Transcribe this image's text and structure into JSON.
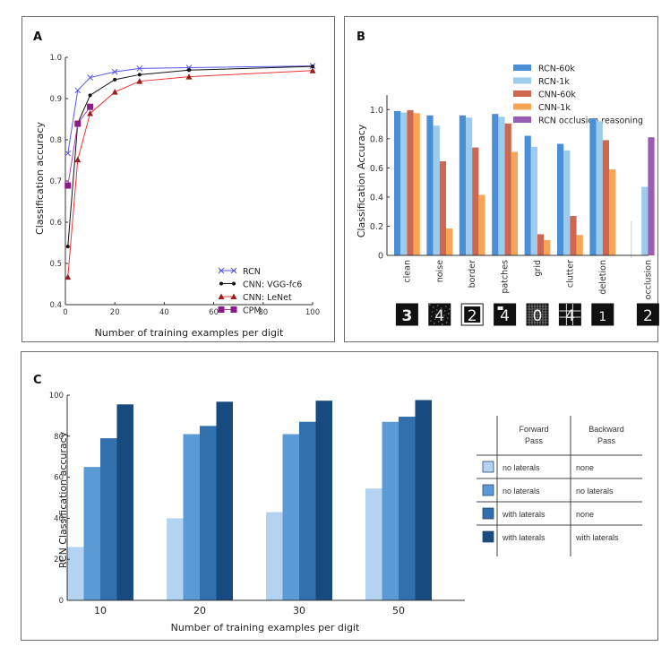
{
  "panels": {
    "A": {
      "label": "A"
    },
    "B": {
      "label": "B"
    },
    "C": {
      "label": "C"
    }
  },
  "chart_data": [
    {
      "id": "A",
      "type": "line",
      "title": "",
      "xlabel": "Number of training examples per digit",
      "ylabel": "Classification accuracy",
      "xlim": [
        0,
        100
      ],
      "ylim": [
        0.4,
        1.0
      ],
      "xticks": [
        "0",
        "20",
        "40",
        "60",
        "80",
        "100"
      ],
      "xtick_values": [
        0,
        20,
        40,
        60,
        80,
        100
      ],
      "yticks": [
        "0.4",
        "0.5",
        "0.6",
        "0.7",
        "0.8",
        "0.9",
        "1.0"
      ],
      "ytick_values": [
        0.4,
        0.5,
        0.6,
        0.7,
        0.8,
        0.9,
        1.0
      ],
      "grid": false,
      "legend_position": "bottom-right",
      "series": [
        {
          "name": "RCN",
          "color": "#5555ee",
          "marker": "x",
          "x": [
            1,
            5,
            10,
            20,
            30,
            50,
            100
          ],
          "y": [
            0.767,
            0.92,
            0.951,
            0.965,
            0.973,
            0.975,
            0.979
          ]
        },
        {
          "name": "CNN: VGG-fc6",
          "color": "#111111",
          "marker": "star",
          "x": [
            1,
            5,
            10,
            20,
            30,
            50,
            100
          ],
          "y": [
            0.541,
            0.84,
            0.908,
            0.946,
            0.958,
            0.969,
            0.978
          ]
        },
        {
          "name": "CNN: LeNet",
          "color": "#ee3333",
          "marker_color": "#9a1f1f",
          "marker": "triangle",
          "x": [
            1,
            5,
            10,
            20,
            30,
            50,
            100
          ],
          "y": [
            0.467,
            0.752,
            0.864,
            0.916,
            0.942,
            0.953,
            0.968
          ]
        },
        {
          "name": "CPM",
          "color": "#b040b0",
          "marker_color": "#8b1a8b",
          "marker": "square",
          "x": [
            1,
            5,
            10
          ],
          "y": [
            0.689,
            0.839,
            0.88
          ]
        }
      ]
    },
    {
      "id": "B",
      "type": "bar",
      "title": "",
      "xlabel": "",
      "ylabel": "Classification Accuracy",
      "ylim": [
        0,
        1.1
      ],
      "yticks": [
        "0",
        "0.2",
        "0.4",
        "0.6",
        "0.8",
        "1.0"
      ],
      "ytick_values": [
        0,
        0.2,
        0.4,
        0.6,
        0.8,
        1.0
      ],
      "grid": false,
      "legend_position": "top-right",
      "categories": [
        "clean",
        "noise",
        "border",
        "patches",
        "grid",
        "clutter",
        "deletion",
        "occlusion"
      ],
      "category_images": [
        "digit 3 clean",
        "digit 4 with noise",
        "digit 2 with border",
        "digit 4 with patches",
        "digit 0 with grid",
        "digit 4 with clutter",
        "digit 1 with deletion",
        "digit 2 with occlusion"
      ],
      "series": [
        {
          "name": "RCN-60k",
          "color": "#4a8fd6",
          "values": [
            0.99,
            0.96,
            0.96,
            0.97,
            0.82,
            0.765,
            0.94,
            null
          ]
        },
        {
          "name": "RCN-1k",
          "color": "#9ccbec",
          "values": [
            0.98,
            0.89,
            0.945,
            0.95,
            0.745,
            0.72,
            0.92,
            0.47
          ]
        },
        {
          "name": "CNN-60k",
          "color": "#cf6650",
          "values": [
            0.995,
            0.645,
            0.74,
            0.905,
            0.145,
            0.27,
            0.79,
            null
          ]
        },
        {
          "name": "CNN-1k",
          "color": "#f7a455",
          "values": [
            0.975,
            0.185,
            0.415,
            0.71,
            0.105,
            0.14,
            0.59,
            null
          ]
        },
        {
          "name": "RCN occlusion reasoning",
          "color": "#9b5cb5",
          "values": [
            null,
            null,
            null,
            null,
            null,
            null,
            null,
            0.81
          ]
        }
      ]
    },
    {
      "id": "C",
      "type": "bar",
      "title": "",
      "xlabel": "Number of training examples per digit",
      "ylabel": "RCN Classification accuracy",
      "ylim": [
        0,
        100
      ],
      "yticks": [
        "0",
        "20",
        "40",
        "60",
        "80",
        "100"
      ],
      "ytick_values": [
        0,
        20,
        40,
        60,
        80,
        100
      ],
      "grid": false,
      "legend_position": "right",
      "categories": [
        "10",
        "20",
        "30",
        "50"
      ],
      "series": [
        {
          "name": "Forward: no laterals / Backward: none",
          "color": "#b3d3f0",
          "values": [
            26,
            40,
            43,
            54.5
          ]
        },
        {
          "name": "Forward: no laterals / Backward: no laterals",
          "color": "#5b9bd5",
          "values": [
            65,
            81,
            81,
            87
          ]
        },
        {
          "name": "Forward: with laterals / Backward: none",
          "color": "#3170ac",
          "values": [
            79,
            85,
            87,
            89.5
          ]
        },
        {
          "name": "Forward: with laterals / Backward: with laterals",
          "color": "#174a7e",
          "values": [
            95.5,
            96.8,
            97.3,
            97.6
          ]
        }
      ],
      "legend_table": {
        "headers": [
          "Forward\nPass",
          "Backward\nPass"
        ],
        "header_lines": [
          [
            "Forward",
            "Pass"
          ],
          [
            "Backward",
            "Pass"
          ]
        ],
        "rows": [
          {
            "forward": "no laterals",
            "backward": "none"
          },
          {
            "forward": "no laterals",
            "backward": "no laterals"
          },
          {
            "forward": "with laterals",
            "backward": "none"
          },
          {
            "forward": "with laterals",
            "backward": "with laterals"
          }
        ]
      }
    }
  ]
}
